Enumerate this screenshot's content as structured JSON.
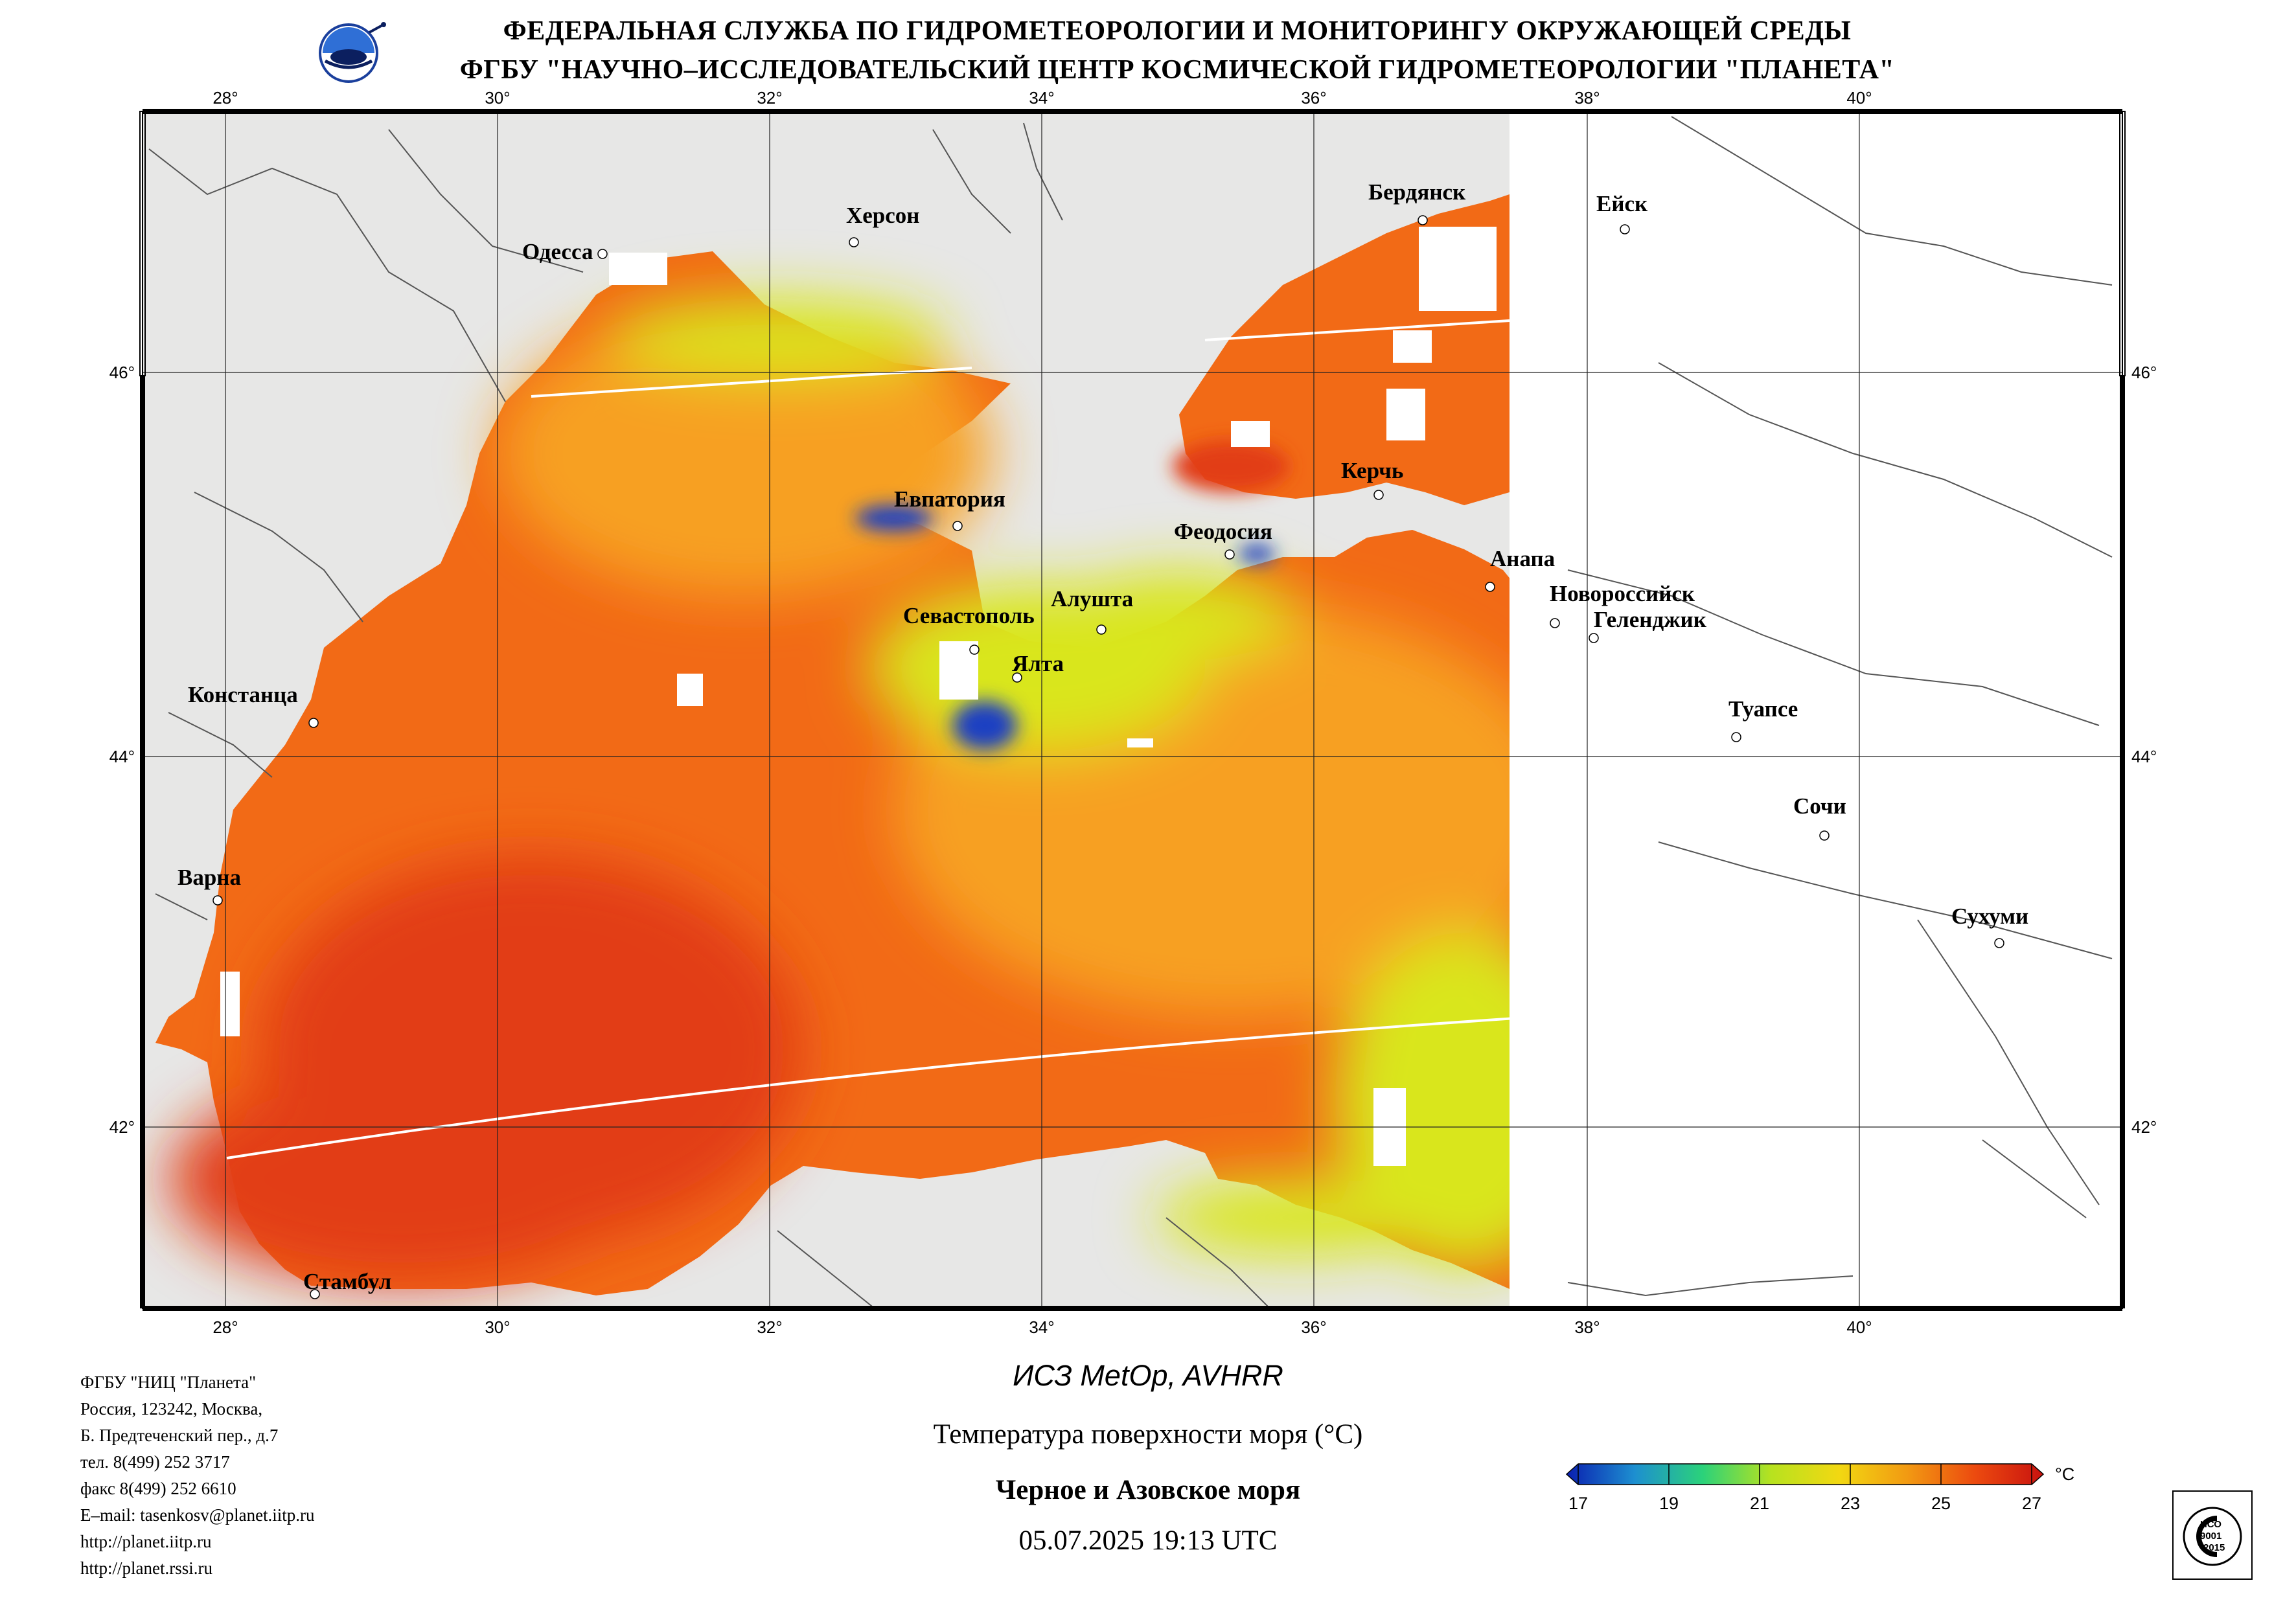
{
  "header": {
    "line1": "ФЕДЕРАЛЬНАЯ СЛУЖБА ПО ГИДРОМЕТЕОРОЛОГИИ И МОНИТОРИНГУ ОКРУЖАЮЩЕЙ СРЕДЫ",
    "line2": "ФГБУ \"НАУЧНО–ИССЛЕДОВАТЕЛЬСКИЙ ЦЕНТР КОСМИЧЕСКОЙ ГИДРОМЕТЕОРОЛОГИИ \"ПЛАНЕТА\""
  },
  "map": {
    "lon_labels": [
      "28°",
      "30°",
      "32°",
      "34°",
      "36°",
      "38°",
      "40°"
    ],
    "lat_labels": [
      "46°",
      "44°",
      "42°"
    ],
    "cities": [
      "Одесса",
      "Херсон",
      "Бердянск",
      "Ейск",
      "Керчь",
      "Евпатория",
      "Феодосия",
      "Анапа",
      "Новороссийск",
      "Геленджик",
      "Севастополь",
      "Алушта",
      "Ялта",
      "Констанца",
      "Туапсе",
      "Сочи",
      "Варна",
      "Сухуми",
      "Стамбул"
    ],
    "colors": {
      "land": "#e7e7e6",
      "cloud_nodata": "#ffffff",
      "sst_warm": "#f26a16",
      "sst_hot": "#e23c12",
      "sst_mid": "#f7a020",
      "sst_cool": "#d9e61c",
      "sst_cold": "#1e3fc2"
    }
  },
  "organization": {
    "lines": [
      "ФГБУ \"НИЦ \"Планета\"",
      "Россия, 123242, Москва,",
      "Б. Предтеченский пер., д.7",
      "тел. 8(499) 252 3717",
      "факс 8(499) 252 6610",
      "E–mail: tasenkosv@planet.iitp.ru",
      "http://planet.iitp.ru",
      "http://planet.rssi.ru"
    ]
  },
  "product": {
    "satellite": "ИСЗ MetOp, AVHRR",
    "parameter": "Температура поверхности моря (°С)",
    "region": "Черное и Азовское моря",
    "datetime": "05.07.2025 19:13 UTC"
  },
  "colorbar": {
    "unit": "°С",
    "ticks": [
      "17",
      "19",
      "21",
      "23",
      "25",
      "27"
    ],
    "range": [
      17,
      27
    ],
    "stops": [
      "#0a1fb0",
      "#1d8fd0",
      "#2bd27a",
      "#b7e21f",
      "#f2d812",
      "#f29a12",
      "#ec4a0f",
      "#c9130f"
    ]
  },
  "certificate": {
    "lines": [
      "ИСО",
      "9001",
      "-2015"
    ]
  }
}
